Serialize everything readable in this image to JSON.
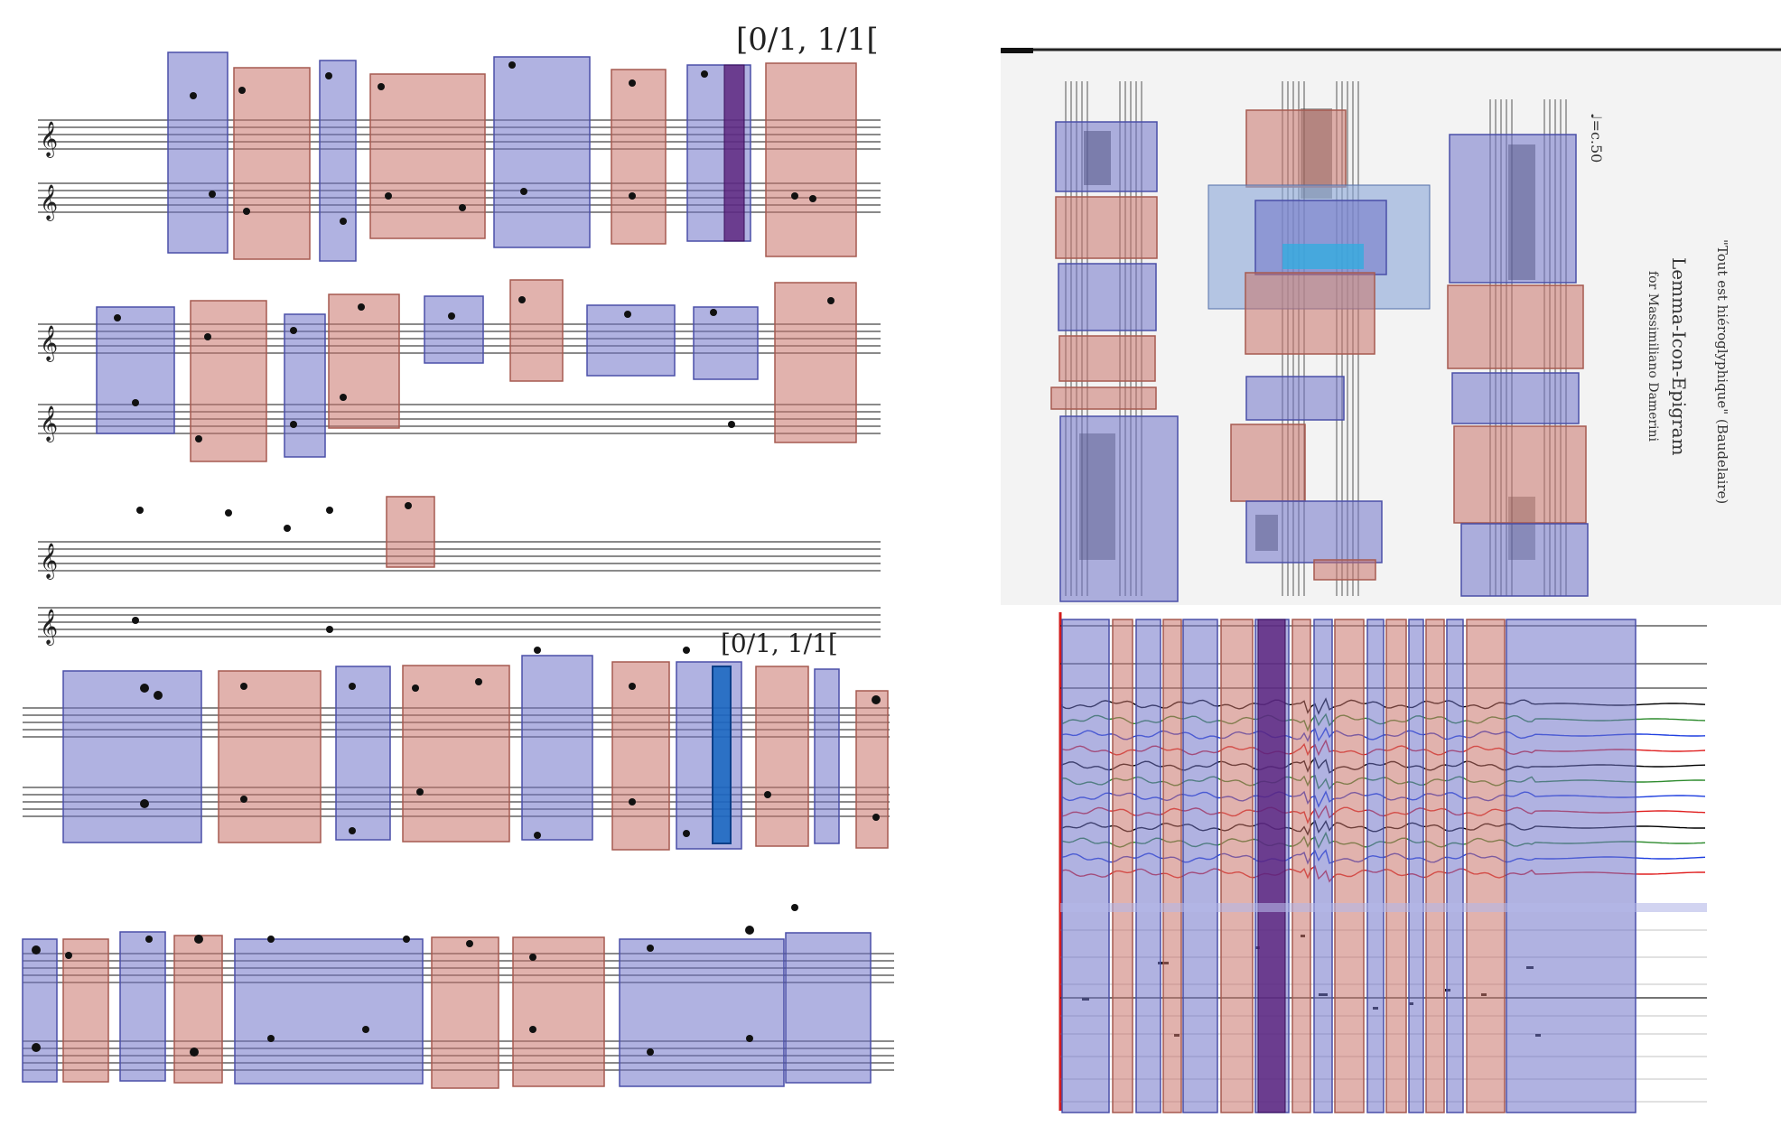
{
  "left_panel": {
    "time_labels": [
      "[0/1, 1/1[",
      "[0/1, 1/1["
    ],
    "systems": [
      {
        "name": "system-1",
        "segments": [
          "blue",
          "red",
          "blue",
          "red",
          "blue",
          "red",
          "blue",
          "red"
        ]
      },
      {
        "name": "system-2",
        "segments": [
          "blue",
          "red",
          "blue",
          "red",
          "blue",
          "red",
          "blue",
          "blue",
          "red"
        ]
      },
      {
        "name": "system-3",
        "segments": [
          "red"
        ]
      },
      {
        "name": "system-4",
        "segments": [
          "blue",
          "red",
          "blue",
          "red",
          "blue",
          "red",
          "blue",
          "red",
          "blue",
          "red"
        ]
      },
      {
        "name": "system-5",
        "segments": [
          "blue",
          "red",
          "blue",
          "red",
          "blue",
          "red",
          "red",
          "blue",
          "blue"
        ]
      }
    ]
  },
  "right_top_panel": {
    "title_lines": [
      "\"Tout est hiéroglyphique\" (Baudelaire)",
      "Lemma-Icon-Epigram",
      "for Massimiliano Damerini"
    ],
    "tempo_mark": "♩=c.50"
  },
  "right_bottom_panel": {
    "signal_colors": [
      "#000000",
      "#2e8b2e",
      "#1f3fe0",
      "#e02020",
      "#000000",
      "#2e8b2e",
      "#1f3fe0",
      "#e02020",
      "#000000",
      "#2e8b2e",
      "#1f3fe0",
      "#e02020"
    ],
    "segments": [
      "blue",
      "red",
      "blue",
      "red",
      "blue",
      "red",
      "blue",
      "red",
      "blue",
      "red",
      "blue",
      "red",
      "blue",
      "red",
      "blue",
      "red",
      "blue"
    ]
  },
  "colors": {
    "blue_overlay": "#6f73c8",
    "red_overlay": "#c8736a",
    "highlight_purple": "#5a1f7a",
    "highlight_blue": "#1565c0",
    "staff_line": "#444444"
  }
}
